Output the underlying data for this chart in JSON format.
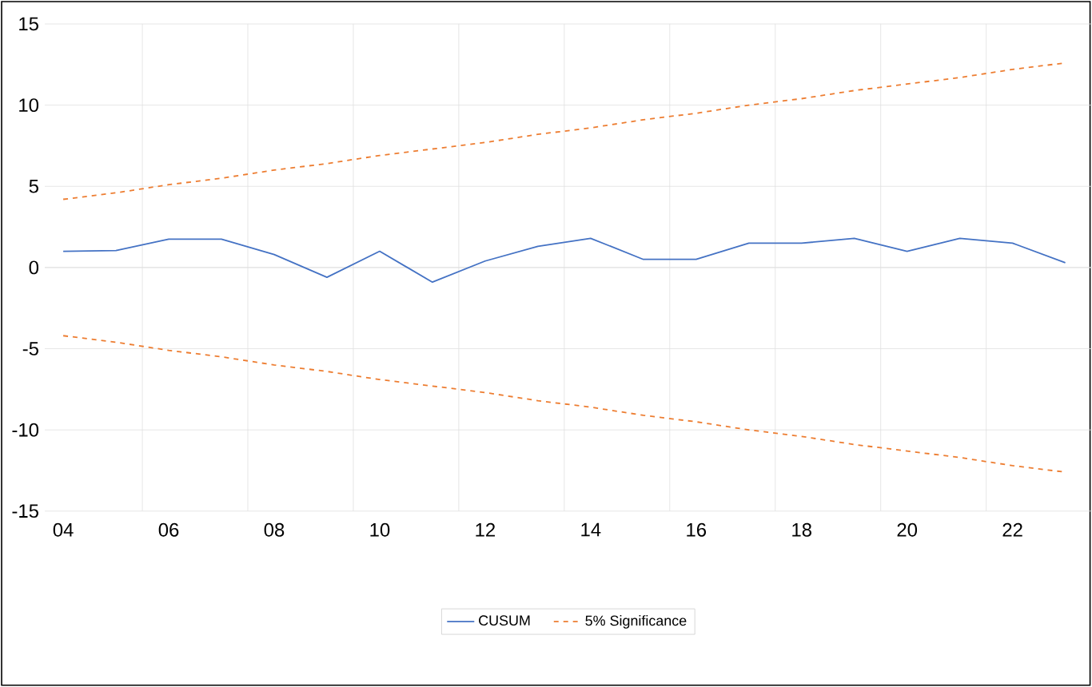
{
  "chart_data": {
    "type": "line",
    "categories": [
      "04",
      null,
      "06",
      null,
      "08",
      null,
      "10",
      null,
      "12",
      null,
      "14",
      null,
      "16",
      null,
      "18",
      null,
      "20",
      null,
      "22",
      null
    ],
    "series": [
      {
        "name": "CUSUM",
        "color": "#4472c4",
        "line_style": "solid",
        "values": [
          1.0,
          1.05,
          1.75,
          1.75,
          0.8,
          -0.6,
          1.0,
          -0.9,
          0.4,
          1.3,
          1.8,
          0.5,
          0.5,
          1.5,
          1.5,
          1.8,
          1.0,
          1.8,
          1.5,
          0.3
        ]
      },
      {
        "name": "5% Significance",
        "color": "#ed7d31",
        "line_style": "dashed",
        "values": [
          4.2,
          4.6,
          5.1,
          5.5,
          6.0,
          6.4,
          6.9,
          7.3,
          7.7,
          8.2,
          8.6,
          9.1,
          9.5,
          10.0,
          10.4,
          10.9,
          11.3,
          11.7,
          12.2,
          12.6
        ]
      },
      {
        "color": "#ed7d31",
        "line_style": "dashed",
        "values": [
          -4.2,
          -4.6,
          -5.1,
          -5.5,
          -6.0,
          -6.4,
          -6.9,
          -7.3,
          -7.7,
          -8.2,
          -8.6,
          -9.1,
          -9.5,
          -10.0,
          -10.4,
          -10.9,
          -11.3,
          -11.7,
          -12.2,
          -12.6
        ]
      }
    ],
    "ylim": [
      -15,
      15
    ],
    "yticks": [
      -15,
      -10,
      -5,
      0,
      5,
      10,
      15
    ],
    "grid": true,
    "legend": "bottom",
    "marker": "none"
  }
}
